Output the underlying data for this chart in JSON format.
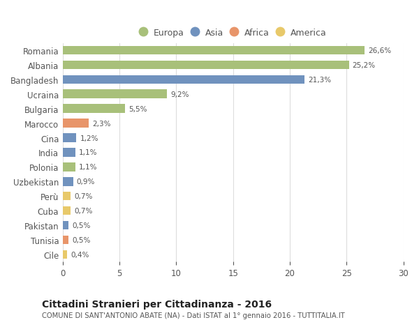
{
  "countries": [
    "Romania",
    "Albania",
    "Bangladesh",
    "Ucraina",
    "Bulgaria",
    "Marocco",
    "Cina",
    "India",
    "Polonia",
    "Uzbekistan",
    "Perù",
    "Cuba",
    "Pakistan",
    "Tunisia",
    "Cile"
  ],
  "values": [
    26.6,
    25.2,
    21.3,
    9.2,
    5.5,
    2.3,
    1.2,
    1.1,
    1.1,
    0.9,
    0.7,
    0.7,
    0.5,
    0.5,
    0.4
  ],
  "labels": [
    "26,6%",
    "25,2%",
    "21,3%",
    "9,2%",
    "5,5%",
    "2,3%",
    "1,2%",
    "1,1%",
    "1,1%",
    "0,9%",
    "0,7%",
    "0,7%",
    "0,5%",
    "0,5%",
    "0,4%"
  ],
  "continents": [
    "Europa",
    "Europa",
    "Asia",
    "Europa",
    "Europa",
    "Africa",
    "Asia",
    "Asia",
    "Europa",
    "Asia",
    "America",
    "America",
    "Asia",
    "Africa",
    "America"
  ],
  "colors": {
    "Europa": "#a8c07a",
    "Asia": "#7092be",
    "Africa": "#e8956a",
    "America": "#e8c96a"
  },
  "legend_order": [
    "Europa",
    "Asia",
    "Africa",
    "America"
  ],
  "title": "Cittadini Stranieri per Cittadinanza - 2016",
  "subtitle": "COMUNE DI SANT'ANTONIO ABATE (NA) - Dati ISTAT al 1° gennaio 2016 - TUTTITALIA.IT",
  "xlim": [
    0,
    30
  ],
  "xticks": [
    0,
    5,
    10,
    15,
    20,
    25,
    30
  ],
  "background_color": "#ffffff",
  "grid_color": "#dddddd"
}
